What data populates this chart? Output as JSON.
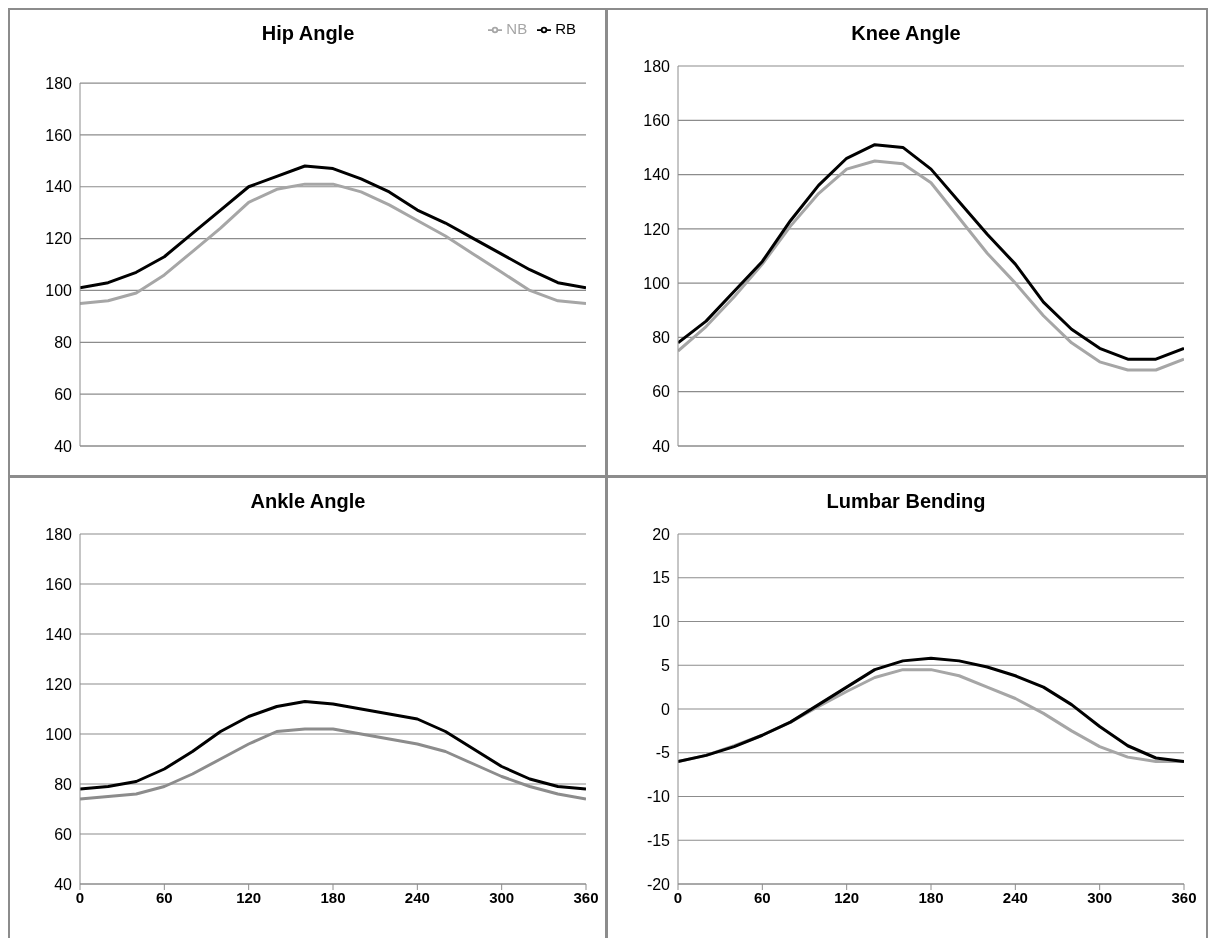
{
  "chart_data": [
    {
      "type": "line",
      "title": "Hip Angle",
      "x": [
        0,
        20,
        40,
        60,
        80,
        100,
        120,
        140,
        160,
        180,
        200,
        220,
        240,
        260,
        280,
        300,
        320,
        340,
        360
      ],
      "xlim": [
        0,
        360
      ],
      "ylim": [
        40,
        180
      ],
      "yticks": [
        40,
        60,
        80,
        100,
        120,
        140,
        160,
        180
      ],
      "grid": "y",
      "tick_labels": "y",
      "legend": "top right",
      "series": [
        {
          "name": "NB",
          "color": "#a6a6a6",
          "values": [
            95,
            96,
            99,
            106,
            115,
            124,
            134,
            139,
            141,
            141,
            138,
            133,
            127,
            121,
            114,
            107,
            100,
            96,
            95
          ]
        },
        {
          "name": "RB",
          "color": "#000000",
          "values": [
            101,
            103,
            107,
            113,
            122,
            131,
            140,
            144,
            148,
            147,
            143,
            138,
            131,
            126,
            120,
            114,
            108,
            103,
            101
          ]
        }
      ]
    },
    {
      "type": "line",
      "title": "Knee Angle",
      "x": [
        0,
        20,
        40,
        60,
        80,
        100,
        120,
        140,
        160,
        180,
        200,
        220,
        240,
        260,
        280,
        300,
        320,
        340,
        360
      ],
      "xlim": [
        0,
        360
      ],
      "ylim": [
        40,
        180
      ],
      "yticks": [
        40,
        60,
        80,
        100,
        120,
        140,
        160,
        180
      ],
      "grid": "y",
      "tick_labels": "y",
      "series": [
        {
          "color": "#a6a6a6",
          "values": [
            75,
            84,
            95,
            107,
            121,
            133,
            142,
            145,
            144,
            137,
            124,
            111,
            100,
            88,
            78,
            71,
            68,
            68,
            72
          ]
        },
        {
          "color": "#000000",
          "values": [
            78,
            86,
            97,
            108,
            123,
            136,
            146,
            151,
            150,
            142,
            130,
            118,
            107,
            93,
            83,
            76,
            72,
            72,
            76
          ]
        }
      ]
    },
    {
      "type": "line",
      "title": "Ankle Angle",
      "x": [
        0,
        20,
        40,
        60,
        80,
        100,
        120,
        140,
        160,
        180,
        200,
        220,
        240,
        260,
        280,
        300,
        320,
        340,
        360
      ],
      "xlim": [
        0,
        360
      ],
      "xticks": [
        0,
        60,
        120,
        180,
        240,
        300,
        360
      ],
      "ylim": [
        40,
        180
      ],
      "yticks": [
        40,
        60,
        80,
        100,
        120,
        140,
        160,
        180
      ],
      "grid": "y",
      "series": [
        {
          "color": "#8c8c8c",
          "values": [
            74,
            75,
            76,
            79,
            84,
            90,
            96,
            101,
            102,
            102,
            100,
            98,
            96,
            93,
            88,
            83,
            79,
            76,
            74
          ]
        },
        {
          "color": "#000000",
          "values": [
            78,
            79,
            81,
            86,
            93,
            101,
            107,
            111,
            113,
            112,
            110,
            108,
            106,
            101,
            94,
            87,
            82,
            79,
            78
          ]
        }
      ]
    },
    {
      "type": "line",
      "title": "Lumbar Bending",
      "x": [
        0,
        20,
        40,
        60,
        80,
        100,
        120,
        140,
        160,
        180,
        200,
        220,
        240,
        260,
        280,
        300,
        320,
        340,
        360
      ],
      "xlim": [
        0,
        360
      ],
      "xticks": [
        0,
        60,
        120,
        180,
        240,
        300,
        360
      ],
      "ylim": [
        -20,
        20
      ],
      "yticks": [
        -20,
        -15,
        -10,
        -5,
        0,
        5,
        10,
        15,
        20
      ],
      "grid": "y",
      "series": [
        {
          "color": "#a6a6a6",
          "values": [
            -6,
            -5.3,
            -4.2,
            -3,
            -1.5,
            0.3,
            2,
            3.6,
            4.5,
            4.5,
            3.8,
            2.5,
            1.2,
            -0.5,
            -2.5,
            -4.3,
            -5.5,
            -6,
            -6
          ]
        },
        {
          "color": "#000000",
          "values": [
            -6,
            -5.3,
            -4.3,
            -3,
            -1.5,
            0.5,
            2.5,
            4.5,
            5.5,
            5.8,
            5.5,
            4.8,
            3.8,
            2.5,
            0.5,
            -2,
            -4.2,
            -5.6,
            -6
          ]
        }
      ]
    }
  ]
}
